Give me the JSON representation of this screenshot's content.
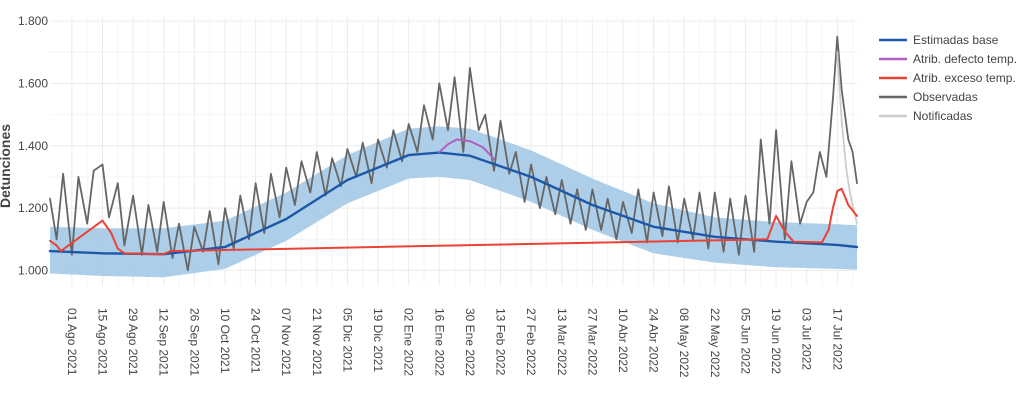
{
  "chart_data": {
    "type": "line",
    "title": "",
    "xlabel": "",
    "ylabel": "Detunciones",
    "ylim": [
      950,
      1810
    ],
    "x_range": [
      "2021-07-22",
      "2022-07-26"
    ],
    "grid": true,
    "legend_position": "right",
    "yticks": [
      {
        "value": 1000,
        "label": "1.000"
      },
      {
        "value": 1200,
        "label": "1.200"
      },
      {
        "value": 1400,
        "label": "1.400"
      },
      {
        "value": 1600,
        "label": "1.600"
      },
      {
        "value": 1800,
        "label": "1.800"
      }
    ],
    "xticks": [
      {
        "date": "2021-08-01",
        "label": "01 Ago 2021"
      },
      {
        "date": "2021-08-15",
        "label": "15 Ago 2021"
      },
      {
        "date": "2021-08-29",
        "label": "29 Ago 2021"
      },
      {
        "date": "2021-09-12",
        "label": "12 Sep 2021"
      },
      {
        "date": "2021-09-26",
        "label": "26 Sep 2021"
      },
      {
        "date": "2021-10-10",
        "label": "10 Oct 2021"
      },
      {
        "date": "2021-10-24",
        "label": "24 Oct 2021"
      },
      {
        "date": "2021-11-07",
        "label": "07 Nov 2021"
      },
      {
        "date": "2021-11-21",
        "label": "21 Nov 2021"
      },
      {
        "date": "2021-12-05",
        "label": "05 Dic 2021"
      },
      {
        "date": "2021-12-19",
        "label": "19 Dic 2021"
      },
      {
        "date": "2022-01-02",
        "label": "02 Ene 2022"
      },
      {
        "date": "2022-01-16",
        "label": "16 Ene 2022"
      },
      {
        "date": "2022-01-30",
        "label": "30 Ene 2022"
      },
      {
        "date": "2022-02-13",
        "label": "13 Feb 2022"
      },
      {
        "date": "2022-02-27",
        "label": "27 Feb 2022"
      },
      {
        "date": "2022-03-13",
        "label": "13 Mar 2022"
      },
      {
        "date": "2022-03-27",
        "label": "27 Mar 2022"
      },
      {
        "date": "2022-04-10",
        "label": "10 Abr 2022"
      },
      {
        "date": "2022-04-24",
        "label": "24 Abr 2022"
      },
      {
        "date": "2022-05-08",
        "label": "08 May 2022"
      },
      {
        "date": "2022-05-22",
        "label": "22 May 2022"
      },
      {
        "date": "2022-06-05",
        "label": "05 Jun 2022"
      },
      {
        "date": "2022-06-19",
        "label": "19 Jun 2022"
      },
      {
        "date": "2022-07-03",
        "label": "03 Jul 2022"
      },
      {
        "date": "2022-07-17",
        "label": "17 Jul 2022"
      }
    ],
    "band": {
      "color": "#a9cbe8",
      "x": [
        "2021-07-22",
        "2021-08-15",
        "2021-09-12",
        "2021-10-10",
        "2021-11-07",
        "2021-12-05",
        "2022-01-02",
        "2022-01-16",
        "2022-01-30",
        "2022-02-27",
        "2022-03-27",
        "2022-04-24",
        "2022-05-22",
        "2022-06-19",
        "2022-07-17",
        "2022-07-26"
      ],
      "lower": [
        990,
        982,
        978,
        1005,
        1095,
        1215,
        1295,
        1300,
        1290,
        1220,
        1130,
        1055,
        1025,
        1010,
        1005,
        1002
      ],
      "upper": [
        1140,
        1135,
        1135,
        1160,
        1250,
        1370,
        1455,
        1462,
        1455,
        1385,
        1295,
        1215,
        1170,
        1155,
        1148,
        1145
      ]
    },
    "series": [
      {
        "name": "Estimadas base",
        "color": "#1f57a8",
        "x": [
          "2021-07-22",
          "2021-08-15",
          "2021-09-12",
          "2021-10-10",
          "2021-11-07",
          "2021-12-05",
          "2022-01-02",
          "2022-01-16",
          "2022-01-30",
          "2022-02-27",
          "2022-03-27",
          "2022-04-24",
          "2022-05-22",
          "2022-06-19",
          "2022-07-17",
          "2022-07-26"
        ],
        "y": [
          1062,
          1055,
          1052,
          1075,
          1165,
          1290,
          1370,
          1378,
          1368,
          1300,
          1210,
          1140,
          1108,
          1092,
          1082,
          1075
        ]
      },
      {
        "name": "Atrib. defecto temp.",
        "color": "#b25ec2",
        "x": [
          "2022-01-16",
          "2022-01-20",
          "2022-01-24",
          "2022-01-30",
          "2022-02-05",
          "2022-02-10"
        ],
        "y": [
          1380,
          1405,
          1420,
          1415,
          1395,
          1358
        ]
      },
      {
        "name": "Atrib. exceso temp.",
        "color": "#ea4335",
        "x": [
          "2021-07-22",
          "2021-07-25",
          "2021-07-27",
          "2021-08-15",
          "2021-08-19",
          "2021-08-22",
          "2021-08-25",
          "2021-09-12",
          "2021-09-15",
          "2022-06-15",
          "2022-06-19",
          "2022-06-23",
          "2022-06-27",
          "2022-07-10",
          "2022-07-13",
          "2022-07-15",
          "2022-07-17",
          "2022-07-19",
          "2022-07-22",
          "2022-07-26"
        ],
        "y": [
          1095,
          1080,
          1062,
          1160,
          1120,
          1070,
          1055,
          1052,
          1062,
          1100,
          1175,
          1125,
          1092,
          1090,
          1130,
          1200,
          1255,
          1262,
          1210,
          1175
        ]
      },
      {
        "name": "Observadas",
        "color": "#666666",
        "x": [
          "2021-07-22",
          "2021-07-25",
          "2021-07-28",
          "2021-08-01",
          "2021-08-04",
          "2021-08-08",
          "2021-08-11",
          "2021-08-15",
          "2021-08-18",
          "2021-08-22",
          "2021-08-25",
          "2021-08-29",
          "2021-09-02",
          "2021-09-05",
          "2021-09-09",
          "2021-09-12",
          "2021-09-16",
          "2021-09-19",
          "2021-09-23",
          "2021-09-26",
          "2021-09-30",
          "2021-10-03",
          "2021-10-07",
          "2021-10-10",
          "2021-10-14",
          "2021-10-17",
          "2021-10-21",
          "2021-10-24",
          "2021-10-28",
          "2021-10-31",
          "2021-11-04",
          "2021-11-07",
          "2021-11-11",
          "2021-11-14",
          "2021-11-18",
          "2021-11-21",
          "2021-11-25",
          "2021-11-28",
          "2021-12-02",
          "2021-12-05",
          "2021-12-09",
          "2021-12-12",
          "2021-12-16",
          "2021-12-19",
          "2021-12-23",
          "2021-12-26",
          "2021-12-30",
          "2022-01-02",
          "2022-01-06",
          "2022-01-09",
          "2022-01-13",
          "2022-01-16",
          "2022-01-20",
          "2022-01-23",
          "2022-01-27",
          "2022-01-30",
          "2022-02-03",
          "2022-02-06",
          "2022-02-10",
          "2022-02-13",
          "2022-02-17",
          "2022-02-20",
          "2022-02-24",
          "2022-02-27",
          "2022-03-03",
          "2022-03-06",
          "2022-03-10",
          "2022-03-13",
          "2022-03-17",
          "2022-03-20",
          "2022-03-24",
          "2022-03-27",
          "2022-03-31",
          "2022-04-03",
          "2022-04-07",
          "2022-04-10",
          "2022-04-14",
          "2022-04-17",
          "2022-04-21",
          "2022-04-24",
          "2022-04-28",
          "2022-05-01",
          "2022-05-05",
          "2022-05-08",
          "2022-05-12",
          "2022-05-15",
          "2022-05-19",
          "2022-05-22",
          "2022-05-26",
          "2022-05-29",
          "2022-06-02",
          "2022-06-05",
          "2022-06-09",
          "2022-06-12",
          "2022-06-16",
          "2022-06-19",
          "2022-06-23",
          "2022-06-26",
          "2022-06-30",
          "2022-07-03",
          "2022-07-06",
          "2022-07-09",
          "2022-07-12",
          "2022-07-15",
          "2022-07-17",
          "2022-07-19",
          "2022-07-22",
          "2022-07-24",
          "2022-07-26"
        ],
        "y": [
          1230,
          1100,
          1310,
          1050,
          1300,
          1150,
          1320,
          1340,
          1170,
          1280,
          1080,
          1240,
          1050,
          1210,
          1060,
          1220,
          1040,
          1150,
          1000,
          1140,
          1060,
          1190,
          1020,
          1200,
          1070,
          1240,
          1100,
          1280,
          1120,
          1310,
          1170,
          1330,
          1210,
          1350,
          1250,
          1380,
          1240,
          1360,
          1270,
          1390,
          1300,
          1410,
          1280,
          1420,
          1330,
          1450,
          1350,
          1470,
          1380,
          1530,
          1420,
          1600,
          1450,
          1620,
          1380,
          1650,
          1450,
          1500,
          1320,
          1480,
          1310,
          1380,
          1220,
          1340,
          1200,
          1300,
          1180,
          1290,
          1150,
          1260,
          1130,
          1260,
          1130,
          1230,
          1100,
          1220,
          1120,
          1260,
          1090,
          1250,
          1110,
          1270,
          1090,
          1230,
          1100,
          1250,
          1070,
          1250,
          1060,
          1230,
          1050,
          1240,
          1060,
          1420,
          1150,
          1450,
          1100,
          1350,
          1150,
          1220,
          1250,
          1380,
          1300,
          1550,
          1750,
          1580,
          1420,
          1380,
          1280
        ]
      },
      {
        "name": "Notificadas",
        "color": "#cccccc",
        "x": [
          "2022-07-17",
          "2022-07-19",
          "2022-07-21",
          "2022-07-23",
          "2022-07-26"
        ],
        "y": [
          1700,
          1480,
          1330,
          1240,
          1150
        ]
      }
    ]
  }
}
